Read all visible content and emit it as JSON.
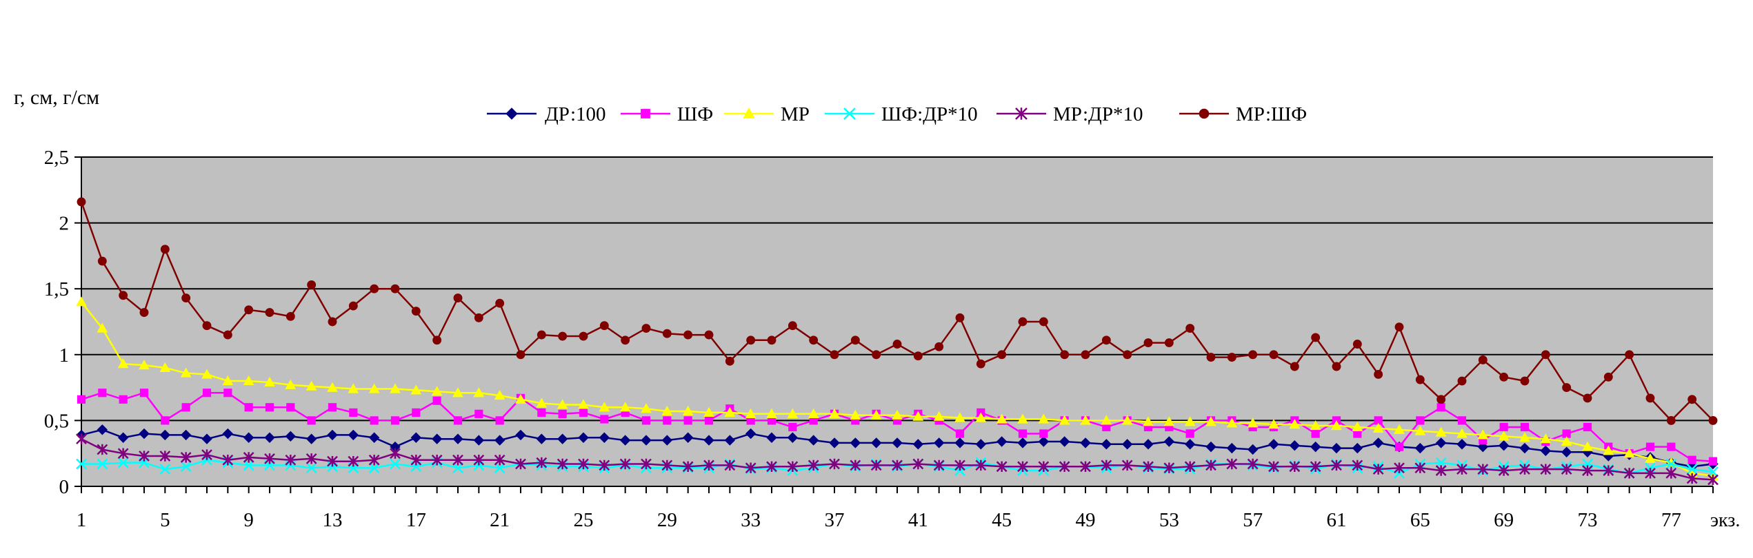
{
  "chart_data": {
    "type": "line",
    "title": "",
    "ylabel": "г, см, г/см",
    "xlabel": "экз.",
    "ylim": [
      0,
      2.5
    ],
    "yticks": [
      "0",
      "0,5",
      "1",
      "1,5",
      "2",
      "2,5"
    ],
    "xticks": [
      "1",
      "5",
      "9",
      "13",
      "17",
      "21",
      "25",
      "29",
      "33",
      "37",
      "41",
      "45",
      "49",
      "53",
      "57",
      "61",
      "65",
      "69",
      "73",
      "77"
    ],
    "x": [
      1,
      2,
      3,
      4,
      5,
      6,
      7,
      8,
      9,
      10,
      11,
      12,
      13,
      14,
      15,
      16,
      17,
      18,
      19,
      20,
      21,
      22,
      23,
      24,
      25,
      26,
      27,
      28,
      29,
      30,
      31,
      32,
      33,
      34,
      35,
      36,
      37,
      38,
      39,
      40,
      41,
      42,
      43,
      44,
      45,
      46,
      47,
      48,
      49,
      50,
      51,
      52,
      53,
      54,
      55,
      56,
      57,
      58,
      59,
      60,
      61,
      62,
      63,
      64,
      65,
      66,
      67,
      68,
      69,
      70,
      71,
      72,
      73,
      74,
      75,
      76,
      77,
      78,
      79
    ],
    "grid": true,
    "legend_position": "top",
    "plot_background": "#c0c0c0",
    "series": [
      {
        "name": "ДР:100",
        "color": "#000080",
        "marker": "diamond",
        "values": [
          0.39,
          0.43,
          0.37,
          0.4,
          0.39,
          0.39,
          0.36,
          0.4,
          0.37,
          0.37,
          0.38,
          0.36,
          0.39,
          0.39,
          0.37,
          0.3,
          0.37,
          0.36,
          0.36,
          0.35,
          0.35,
          0.39,
          0.36,
          0.36,
          0.37,
          0.37,
          0.35,
          0.35,
          0.35,
          0.37,
          0.35,
          0.35,
          0.4,
          0.37,
          0.37,
          0.35,
          0.33,
          0.33,
          0.33,
          0.33,
          0.32,
          0.33,
          0.33,
          0.32,
          0.34,
          0.33,
          0.34,
          0.34,
          0.33,
          0.32,
          0.32,
          0.32,
          0.34,
          0.32,
          0.3,
          0.29,
          0.28,
          0.32,
          0.31,
          0.3,
          0.29,
          0.29,
          0.33,
          0.3,
          0.29,
          0.33,
          0.32,
          0.3,
          0.31,
          0.29,
          0.27,
          0.26,
          0.26,
          0.23,
          0.24,
          0.22,
          0.18,
          0.15,
          0.17
        ]
      },
      {
        "name": "ШФ",
        "color": "#ff00ff",
        "marker": "square",
        "values": [
          0.66,
          0.71,
          0.66,
          0.71,
          0.5,
          0.6,
          0.71,
          0.71,
          0.6,
          0.6,
          0.6,
          0.5,
          0.6,
          0.56,
          0.5,
          0.5,
          0.56,
          0.65,
          0.5,
          0.55,
          0.5,
          0.67,
          0.56,
          0.55,
          0.56,
          0.51,
          0.56,
          0.5,
          0.5,
          0.5,
          0.5,
          0.59,
          0.5,
          0.5,
          0.45,
          0.5,
          0.55,
          0.5,
          0.55,
          0.5,
          0.55,
          0.5,
          0.4,
          0.56,
          0.5,
          0.4,
          0.4,
          0.5,
          0.5,
          0.45,
          0.5,
          0.45,
          0.45,
          0.4,
          0.5,
          0.5,
          0.45,
          0.45,
          0.5,
          0.4,
          0.5,
          0.4,
          0.5,
          0.3,
          0.5,
          0.6,
          0.5,
          0.35,
          0.45,
          0.45,
          0.34,
          0.4,
          0.45,
          0.3,
          0.25,
          0.3,
          0.3,
          0.2,
          0.19
        ]
      },
      {
        "name": "МР",
        "color": "#ffff00",
        "marker": "triangle",
        "values": [
          1.4,
          1.2,
          0.93,
          0.92,
          0.9,
          0.86,
          0.85,
          0.8,
          0.8,
          0.79,
          0.77,
          0.76,
          0.75,
          0.74,
          0.74,
          0.74,
          0.73,
          0.72,
          0.71,
          0.71,
          0.69,
          0.66,
          0.63,
          0.62,
          0.62,
          0.6,
          0.6,
          0.59,
          0.57,
          0.57,
          0.56,
          0.56,
          0.55,
          0.55,
          0.55,
          0.55,
          0.55,
          0.54,
          0.54,
          0.54,
          0.53,
          0.53,
          0.52,
          0.52,
          0.51,
          0.51,
          0.51,
          0.5,
          0.5,
          0.5,
          0.5,
          0.49,
          0.49,
          0.49,
          0.49,
          0.48,
          0.48,
          0.47,
          0.47,
          0.46,
          0.46,
          0.45,
          0.44,
          0.43,
          0.42,
          0.41,
          0.4,
          0.39,
          0.38,
          0.37,
          0.36,
          0.34,
          0.3,
          0.27,
          0.25,
          0.21,
          0.18,
          0.1,
          0.08
        ]
      },
      {
        "name": "ШФ:ДР*10",
        "color": "#00ffff",
        "marker": "x",
        "values": [
          0.17,
          0.17,
          0.18,
          0.18,
          0.13,
          0.15,
          0.2,
          0.18,
          0.16,
          0.16,
          0.16,
          0.14,
          0.15,
          0.14,
          0.14,
          0.17,
          0.15,
          0.18,
          0.14,
          0.16,
          0.14,
          0.17,
          0.16,
          0.15,
          0.15,
          0.14,
          0.16,
          0.14,
          0.14,
          0.14,
          0.14,
          0.17,
          0.13,
          0.14,
          0.12,
          0.14,
          0.17,
          0.15,
          0.17,
          0.15,
          0.17,
          0.15,
          0.12,
          0.18,
          0.15,
          0.12,
          0.12,
          0.15,
          0.15,
          0.14,
          0.16,
          0.14,
          0.13,
          0.13,
          0.17,
          0.17,
          0.16,
          0.14,
          0.16,
          0.13,
          0.17,
          0.14,
          0.15,
          0.1,
          0.17,
          0.18,
          0.16,
          0.12,
          0.15,
          0.16,
          0.13,
          0.15,
          0.17,
          0.13,
          0.1,
          0.14,
          0.17,
          0.13,
          0.11
        ]
      },
      {
        "name": "МР:ДР*10",
        "color": "#800080",
        "marker": "star",
        "values": [
          0.36,
          0.28,
          0.25,
          0.23,
          0.23,
          0.22,
          0.24,
          0.2,
          0.22,
          0.21,
          0.2,
          0.21,
          0.19,
          0.19,
          0.2,
          0.25,
          0.2,
          0.2,
          0.2,
          0.2,
          0.2,
          0.17,
          0.18,
          0.17,
          0.17,
          0.16,
          0.17,
          0.17,
          0.16,
          0.15,
          0.16,
          0.16,
          0.14,
          0.15,
          0.15,
          0.16,
          0.17,
          0.16,
          0.16,
          0.16,
          0.17,
          0.16,
          0.16,
          0.16,
          0.15,
          0.15,
          0.15,
          0.15,
          0.15,
          0.16,
          0.16,
          0.15,
          0.14,
          0.15,
          0.16,
          0.17,
          0.17,
          0.15,
          0.15,
          0.15,
          0.16,
          0.16,
          0.13,
          0.14,
          0.14,
          0.12,
          0.13,
          0.13,
          0.12,
          0.13,
          0.13,
          0.13,
          0.12,
          0.12,
          0.1,
          0.1,
          0.1,
          0.06,
          0.05
        ]
      },
      {
        "name": "МР:ШФ",
        "color": "#800000",
        "marker": "circle",
        "values": [
          2.16,
          1.71,
          1.45,
          1.32,
          1.8,
          1.43,
          1.22,
          1.15,
          1.34,
          1.32,
          1.29,
          1.53,
          1.25,
          1.37,
          1.5,
          1.5,
          1.33,
          1.11,
          1.43,
          1.28,
          1.39,
          1.0,
          1.15,
          1.14,
          1.14,
          1.22,
          1.11,
          1.2,
          1.16,
          1.15,
          1.15,
          0.95,
          1.11,
          1.11,
          1.22,
          1.11,
          1.0,
          1.11,
          1.0,
          1.08,
          0.99,
          1.06,
          1.28,
          0.93,
          1.0,
          1.25,
          1.25,
          1.0,
          1.0,
          1.11,
          1.0,
          1.09,
          1.09,
          1.2,
          0.98,
          0.98,
          1.0,
          1.0,
          0.91,
          1.13,
          0.91,
          1.08,
          0.85,
          1.21,
          0.81,
          0.66,
          0.8,
          0.96,
          0.83,
          0.8,
          1.0,
          0.75,
          0.67,
          0.83,
          1.0,
          0.67,
          0.5,
          0.66,
          0.5
        ]
      }
    ]
  }
}
